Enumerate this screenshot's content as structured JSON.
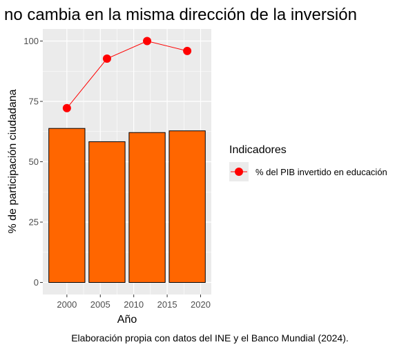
{
  "chart_data": {
    "type": "bar+line",
    "title": "no cambia en la misma dirección de la inversión",
    "xlabel": "Año",
    "ylabel": "% de participación ciudadana",
    "caption": "Elaboración propia con datos del INE y el Banco Mundial (2024).",
    "xlim": [
      1996.4,
      2021.6
    ],
    "ylim": [
      -5,
      105
    ],
    "x_ticks": [
      2000,
      2005,
      2010,
      2015,
      2020
    ],
    "y_ticks": [
      0,
      25,
      50,
      75,
      100
    ],
    "grid": true,
    "bars": {
      "x": [
        2000,
        2006,
        2012,
        2018
      ],
      "values": [
        63.8,
        58.3,
        62.1,
        62.8
      ],
      "fill": "#FF6600",
      "border": "#000000"
    },
    "series": [
      {
        "name": "% del PIB invertido en educación",
        "x": [
          2000,
          2006,
          2012,
          2018
        ],
        "values": [
          72.2,
          92.7,
          100.0,
          95.9
        ],
        "color": "#FF0000"
      }
    ],
    "legend": {
      "title": "Indicadores",
      "position": "right"
    }
  }
}
